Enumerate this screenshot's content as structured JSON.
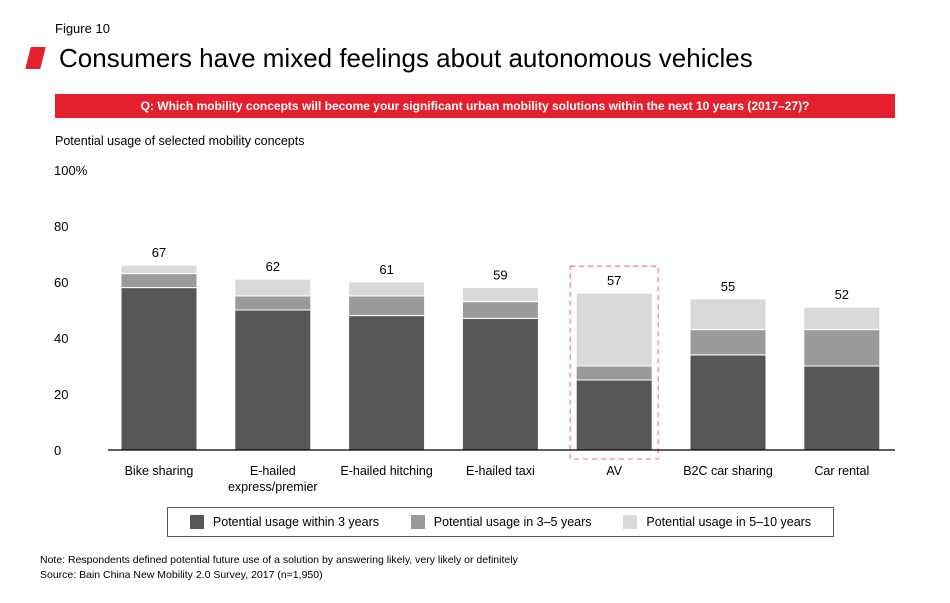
{
  "figure_label": "Figure 10",
  "title": "Consumers have mixed feelings about autonomous vehicles",
  "question": "Q: Which mobility concepts will become your significant urban mobility solutions within the next 10 years (2017–27)?",
  "colors": {
    "accent": "#e5202e",
    "within3": "#575757",
    "in3to5": "#9a9a9a",
    "in5to10": "#d9d9d9",
    "highlight": "#f08a8a"
  },
  "chart_data": {
    "type": "bar",
    "stacked": true,
    "title": "Potential usage of selected mobility concepts",
    "ylabel": "",
    "ylim": [
      0,
      100
    ],
    "y_ticks": [
      0,
      20,
      40,
      60,
      80,
      100
    ],
    "y_tick_labels": [
      "0",
      "20",
      "40",
      "60",
      "80",
      "100%"
    ],
    "categories": [
      "Bike sharing",
      "E-hailed express/premier",
      "E-hailed hitching",
      "E-hailed taxi",
      "AV",
      "B2C car sharing",
      "Car rental"
    ],
    "category_labels": [
      [
        "Bike sharing"
      ],
      [
        "E-hailed",
        "express/premier"
      ],
      [
        "E-hailed hitching"
      ],
      [
        "E-hailed taxi"
      ],
      [
        "AV"
      ],
      [
        "B2C car sharing"
      ],
      [
        "Car rental"
      ]
    ],
    "series": [
      {
        "name": "Potential usage within 3 years",
        "values": [
          58,
          50,
          48,
          47,
          25,
          34,
          30
        ]
      },
      {
        "name": "Potential usage in 3–5 years",
        "values": [
          5,
          5,
          7,
          6,
          5,
          9,
          13
        ]
      },
      {
        "name": "Potential usage in 5–10 years",
        "values": [
          3,
          6,
          5,
          5,
          26,
          11,
          8
        ]
      }
    ],
    "totals": [
      "67",
      "62",
      "61",
      "59",
      "57",
      "55",
      "52"
    ],
    "highlighted_category": "AV",
    "legend_position": "bottom"
  },
  "notes": [
    "Note: Respondents defined potential future use of a solution by answering likely, very likely or definitely",
    "Source: Bain China New Mobility 2.0 Survey, 2017 (n=1,950)"
  ]
}
